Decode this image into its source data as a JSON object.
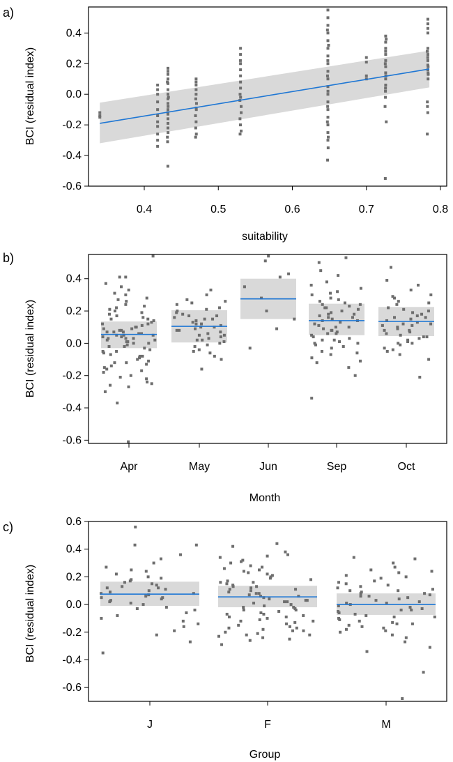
{
  "chart_data": [
    {
      "panel_label": "a)",
      "type": "scatter",
      "xlabel": "suitability",
      "ylabel": "BCI (residual index)",
      "xlim": [
        0.32,
        0.8
      ],
      "ylim": [
        -0.6,
        0.57
      ],
      "xticks": [
        0.4,
        0.5,
        0.6,
        0.7,
        0.8
      ],
      "xtick_labels": [
        "0.4",
        "0.5",
        "0.6",
        "0.7",
        "0.8"
      ],
      "yticks": [
        -0.6,
        -0.4,
        -0.2,
        0.0,
        0.2,
        0.4
      ],
      "ytick_labels": [
        "-0.6",
        "-0.4",
        "-0.2",
        "0.0",
        "0.2",
        "0.4"
      ],
      "grid": false,
      "colors": {
        "fit_line": "#1f77d4",
        "band": "#d9d9d9",
        "points": "#6e6e6e"
      },
      "fit": {
        "x": [
          0.34,
          0.785
        ],
        "y": [
          -0.19,
          0.165
        ],
        "lower": [
          -0.32,
          0.045
        ],
        "upper": [
          -0.055,
          0.285
        ]
      },
      "point_columns": [
        {
          "x": 0.34,
          "values": [
            -0.14,
            -0.12,
            -0.15
          ]
        },
        {
          "x": 0.418,
          "values": [
            -0.18,
            -0.1,
            -0.05,
            0.0,
            0.03,
            0.06,
            -0.21,
            -0.34,
            -0.3,
            -0.26,
            -0.14
          ]
        },
        {
          "x": 0.432,
          "values": [
            0.17,
            0.13,
            0.1,
            0.07,
            0.03,
            0.0,
            -0.03,
            -0.06,
            -0.1,
            -0.13,
            -0.16,
            -0.19,
            -0.22,
            -0.25,
            -0.28,
            -0.31,
            -0.47,
            0.15,
            0.08,
            -0.02,
            -0.08,
            -0.12
          ]
        },
        {
          "x": 0.47,
          "values": [
            0.1,
            0.06,
            0.03,
            0.0,
            -0.03,
            -0.06,
            -0.1,
            -0.14,
            -0.18,
            -0.22,
            -0.26,
            -0.28,
            -0.09,
            0.08
          ]
        },
        {
          "x": 0.53,
          "values": [
            0.3,
            0.26,
            0.2,
            0.16,
            0.12,
            0.08,
            0.04,
            0.0,
            -0.04,
            -0.08,
            -0.12,
            -0.16,
            -0.2,
            -0.24,
            -0.26,
            0.22,
            -0.02
          ]
        },
        {
          "x": 0.648,
          "values": [
            0.55,
            0.5,
            0.45,
            0.4,
            0.35,
            0.3,
            0.25,
            0.2,
            0.15,
            0.1,
            0.05,
            0.0,
            -0.05,
            -0.1,
            -0.15,
            -0.2,
            -0.25,
            -0.3,
            -0.35,
            -0.43,
            0.42,
            0.32,
            0.22,
            0.12,
            0.02,
            -0.08,
            -0.18,
            -0.28
          ]
        },
        {
          "x": 0.7,
          "values": [
            0.24,
            0.21,
            0.1,
            0.12
          ]
        },
        {
          "x": 0.726,
          "values": [
            0.38,
            0.34,
            0.3,
            0.26,
            0.22,
            0.18,
            0.14,
            0.1,
            0.06,
            0.02,
            -0.02,
            -0.08,
            -0.18,
            -0.55,
            0.36,
            0.28,
            0.2,
            0.12,
            0.04
          ]
        },
        {
          "x": 0.783,
          "values": [
            0.49,
            0.46,
            0.43,
            0.4,
            0.3,
            0.26,
            0.22,
            0.19,
            0.16,
            0.13,
            0.1,
            -0.05,
            -0.08,
            -0.12,
            -0.26,
            0.28,
            0.24,
            0.18,
            0.14
          ]
        }
      ]
    },
    {
      "panel_label": "b)",
      "type": "scatter",
      "xlabel": "Month",
      "ylabel": "BCI (residual index)",
      "categories": [
        "Apr",
        "May",
        "Jun",
        "Sep",
        "Oct"
      ],
      "ylim": [
        -0.62,
        0.55
      ],
      "yticks": [
        -0.6,
        -0.4,
        -0.2,
        0.0,
        0.2,
        0.4
      ],
      "ytick_labels": [
        "-0.6",
        "-0.4",
        "-0.2",
        "0.0",
        "0.2",
        "0.4"
      ],
      "grid": false,
      "colors": {
        "fit_line": "#1f77d4",
        "band": "#d9d9d9",
        "points": "#6e6e6e"
      },
      "fit": [
        {
          "category": "Apr",
          "estimate": 0.055,
          "lower": -0.03,
          "upper": 0.135
        },
        {
          "category": "May",
          "estimate": 0.105,
          "lower": 0.005,
          "upper": 0.205
        },
        {
          "category": "Jun",
          "estimate": 0.275,
          "lower": 0.15,
          "upper": 0.4
        },
        {
          "category": "Sep",
          "estimate": 0.14,
          "lower": 0.05,
          "upper": 0.245
        },
        {
          "category": "Oct",
          "estimate": 0.135,
          "lower": 0.045,
          "upper": 0.225
        }
      ],
      "point_groups": [
        {
          "category": "Apr",
          "values": [
            0.54,
            0.41,
            0.41,
            0.33,
            0.3,
            0.28,
            0.26,
            0.24,
            0.22,
            0.2,
            0.19,
            0.18,
            0.17,
            0.16,
            0.15,
            0.14,
            0.13,
            0.12,
            0.11,
            0.1,
            0.09,
            0.09,
            0.08,
            0.08,
            0.07,
            0.07,
            0.06,
            0.06,
            0.05,
            0.05,
            0.04,
            0.04,
            0.03,
            0.03,
            0.02,
            0.02,
            0.01,
            0.0,
            0.0,
            -0.01,
            -0.02,
            -0.03,
            -0.04,
            -0.05,
            -0.06,
            -0.07,
            -0.08,
            -0.09,
            -0.1,
            -0.11,
            -0.12,
            -0.13,
            -0.14,
            -0.15,
            -0.16,
            -0.18,
            -0.2,
            -0.22,
            -0.24,
            -0.26,
            -0.27,
            -0.3,
            -0.37,
            -0.61,
            0.37,
            0.35,
            0.31,
            0.27,
            0.23,
            0.21,
            0.15,
            0.12,
            0.1,
            0.07,
            0.05,
            0.03,
            0.01,
            -0.02,
            -0.05,
            -0.08,
            -0.12,
            -0.17,
            -0.21,
            -0.25
          ]
        },
        {
          "category": "May",
          "values": [
            0.33,
            0.3,
            0.27,
            0.25,
            0.24,
            0.22,
            0.2,
            0.19,
            0.18,
            0.17,
            0.16,
            0.15,
            0.14,
            0.13,
            0.12,
            0.11,
            0.1,
            0.09,
            0.08,
            0.07,
            0.06,
            0.05,
            0.04,
            0.03,
            0.02,
            0.01,
            0.0,
            -0.02,
            -0.04,
            -0.06,
            -0.08,
            -0.1,
            -0.16,
            0.26,
            0.21,
            0.17,
            0.12,
            0.08,
            0.05,
            0.02,
            -0.01,
            -0.05,
            0.15,
            0.1
          ]
        },
        {
          "category": "Jun",
          "values": [
            0.54,
            0.51,
            0.43,
            0.41,
            0.35,
            0.28,
            0.2,
            0.15,
            0.09,
            -0.03
          ]
        },
        {
          "category": "Sep",
          "values": [
            0.53,
            0.5,
            0.45,
            0.42,
            0.38,
            0.36,
            0.34,
            0.32,
            0.3,
            0.28,
            0.26,
            0.25,
            0.24,
            0.23,
            0.22,
            0.21,
            0.2,
            0.19,
            0.18,
            0.17,
            0.16,
            0.15,
            0.14,
            0.13,
            0.12,
            0.11,
            0.1,
            0.09,
            0.08,
            0.07,
            0.06,
            0.05,
            0.04,
            0.03,
            0.02,
            0.01,
            0.0,
            -0.01,
            -0.03,
            -0.05,
            -0.07,
            -0.09,
            -0.12,
            -0.15,
            -0.2,
            -0.34,
            0.27,
            0.22,
            0.18,
            0.14,
            0.1,
            0.06,
            0.02,
            -0.02,
            -0.06,
            -0.11,
            0.31,
            0.24,
            0.16,
            0.08,
            0.0
          ]
        },
        {
          "category": "Oct",
          "values": [
            0.47,
            0.39,
            0.36,
            0.33,
            0.3,
            0.28,
            0.26,
            0.24,
            0.22,
            0.2,
            0.19,
            0.18,
            0.17,
            0.16,
            0.15,
            0.14,
            0.13,
            0.12,
            0.11,
            0.1,
            0.09,
            0.08,
            0.07,
            0.06,
            0.05,
            0.04,
            0.03,
            0.02,
            0.01,
            0.0,
            -0.01,
            -0.03,
            -0.05,
            -0.07,
            -0.1,
            -0.21,
            0.25,
            0.21,
            0.16,
            0.12,
            0.08,
            0.04,
            0.0,
            -0.04,
            0.29,
            0.11
          ]
        }
      ]
    },
    {
      "panel_label": "c)",
      "type": "scatter",
      "xlabel": "Group",
      "ylabel": "BCI (residual index)",
      "categories": [
        "J",
        "F",
        "M"
      ],
      "ylim": [
        -0.7,
        0.6
      ],
      "yticks": [
        -0.6,
        -0.4,
        -0.2,
        0.0,
        0.2,
        0.4,
        0.6
      ],
      "ytick_labels": [
        "-0.6",
        "-0.4",
        "-0.2",
        "0.0",
        "0.2",
        "0.4",
        "0.6"
      ],
      "grid": false,
      "colors": {
        "fit_line": "#1f77d4",
        "band": "#d9d9d9",
        "points": "#6e6e6e"
      },
      "fit": [
        {
          "category": "J",
          "estimate": 0.075,
          "lower": -0.01,
          "upper": 0.165
        },
        {
          "category": "F",
          "estimate": 0.055,
          "lower": -0.02,
          "upper": 0.135
        },
        {
          "category": "M",
          "estimate": 0.0,
          "lower": -0.075,
          "upper": 0.08
        }
      ],
      "point_groups": [
        {
          "category": "J",
          "values": [
            0.56,
            0.43,
            0.43,
            0.36,
            0.33,
            0.3,
            0.27,
            0.24,
            0.22,
            0.2,
            0.18,
            0.16,
            0.15,
            0.14,
            0.13,
            0.12,
            0.11,
            0.1,
            0.09,
            0.08,
            0.07,
            0.06,
            0.05,
            0.04,
            0.03,
            0.02,
            0.01,
            0.0,
            -0.02,
            -0.04,
            -0.06,
            -0.08,
            -0.1,
            -0.12,
            -0.14,
            -0.16,
            -0.19,
            -0.22,
            -0.27,
            -0.35,
            0.25,
            0.19,
            0.12,
            0.05,
            -0.03,
            0.17,
            0.08
          ]
        },
        {
          "category": "F",
          "values": [
            0.44,
            0.42,
            0.38,
            0.36,
            0.34,
            0.32,
            0.3,
            0.28,
            0.26,
            0.24,
            0.22,
            0.2,
            0.19,
            0.18,
            0.17,
            0.16,
            0.15,
            0.14,
            0.13,
            0.12,
            0.11,
            0.1,
            0.09,
            0.08,
            0.07,
            0.06,
            0.05,
            0.04,
            0.03,
            0.02,
            0.01,
            0.0,
            -0.01,
            -0.02,
            -0.03,
            -0.04,
            -0.05,
            -0.06,
            -0.07,
            -0.08,
            -0.09,
            -0.1,
            -0.11,
            -0.12,
            -0.13,
            -0.14,
            -0.15,
            -0.16,
            -0.17,
            -0.18,
            -0.19,
            -0.2,
            -0.21,
            -0.22,
            -0.23,
            -0.24,
            -0.25,
            -0.26,
            -0.29,
            0.35,
            0.27,
            0.21,
            0.16,
            0.11,
            0.06,
            0.02,
            -0.02,
            -0.07,
            -0.12,
            -0.17,
            -0.22,
            0.31,
            0.23,
            0.13,
            0.03,
            -0.09,
            -0.19,
            0.25,
            0.08,
            -0.04
          ]
        },
        {
          "category": "M",
          "values": [
            0.34,
            0.33,
            0.3,
            0.27,
            0.25,
            0.23,
            0.21,
            0.19,
            0.17,
            0.15,
            0.14,
            0.13,
            0.12,
            0.11,
            0.1,
            0.09,
            0.08,
            0.07,
            0.06,
            0.05,
            0.04,
            0.03,
            0.02,
            0.01,
            0.0,
            -0.01,
            -0.02,
            -0.03,
            -0.04,
            -0.05,
            -0.06,
            -0.07,
            -0.08,
            -0.09,
            -0.1,
            -0.11,
            -0.12,
            -0.13,
            -0.14,
            -0.15,
            -0.16,
            -0.17,
            -0.18,
            -0.19,
            -0.2,
            -0.22,
            -0.24,
            -0.27,
            -0.31,
            -0.34,
            -0.49,
            -0.68,
            0.2,
            0.16,
            0.1,
            0.06,
            0.01,
            -0.04,
            -0.09,
            -0.14,
            0.24,
            0.08
          ]
        }
      ]
    }
  ]
}
